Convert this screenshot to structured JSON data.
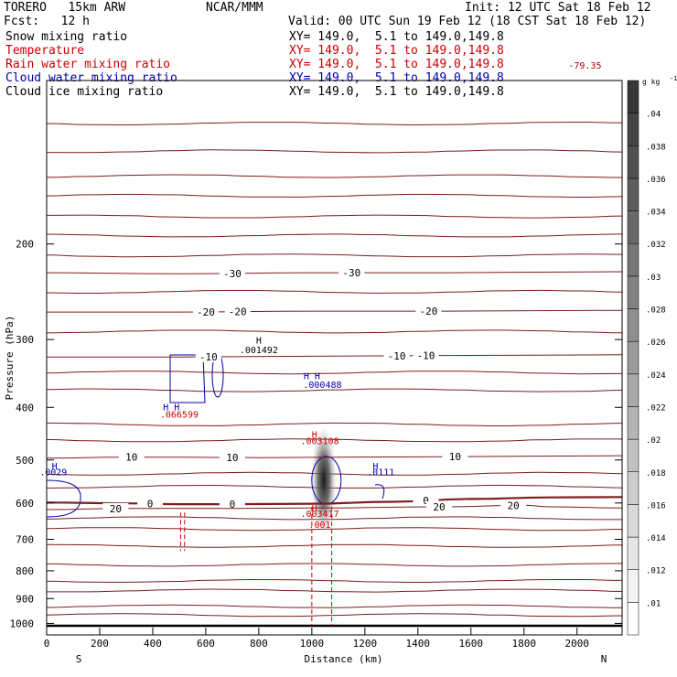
{
  "header": {
    "model": "TORERO   15km ARW",
    "org": "NCAR/MMM",
    "init": "Init: 12 UTC Sat 18 Feb 12",
    "fcst": "Fcst:   12 h",
    "valid": "Valid: 00 UTC Sun 19 Feb 12 (18 CST Sat 18 Feb 12)",
    "fields": [
      {
        "name": "Snow mixing ratio",
        "loc": "XY= 149.0,  5.1 to 149.0,149.8",
        "color": "#000000"
      },
      {
        "name": "Temperature",
        "loc": "XY= 149.0,  5.1 to 149.0,149.8",
        "color": "#cc0000"
      },
      {
        "name": "Rain water mixing ratio",
        "loc": "XY= 149.0,  5.1 to 149.0,149.8",
        "color": "#cc0000"
      },
      {
        "name": "Cloud water mixing ratio",
        "loc": "XY= 149.0,  5.1 to 149.0,149.8",
        "color": "#0000aa"
      },
      {
        "name": "Cloud ice mixing ratio",
        "loc": "XY= 149.0,  5.1 to 149.0,149.8",
        "color": "#000000"
      }
    ]
  },
  "chart_data": {
    "type": "contour",
    "xlabel": "Distance (km)",
    "ylabel": "Pressure (hPa)",
    "xlim": [
      0,
      2170
    ],
    "ylim": [
      1050,
      100
    ],
    "y_scale": "log-pressure",
    "xticks": [
      0,
      200,
      400,
      600,
      800,
      1000,
      1200,
      1400,
      1600,
      1800,
      2000
    ],
    "yticks": [
      200,
      300,
      400,
      500,
      600,
      700,
      800,
      900,
      1000
    ],
    "left_end_label": "S",
    "right_end_label": "N",
    "colorbar": {
      "unit": "g kg",
      "unit_exp": "-1",
      "ticks": [
        ".01",
        ".012",
        ".014",
        ".016",
        ".018",
        ".02",
        ".022",
        ".024",
        ".026",
        ".028",
        ".03",
        ".032",
        ".034",
        ".036",
        ".038",
        ".04"
      ]
    },
    "temperature_contours": [
      {
        "label": "-30",
        "points": [
          [
            0,
            226
          ],
          [
            500,
            227
          ],
          [
            1000,
            226
          ],
          [
            1500,
            226
          ],
          [
            2170,
            225
          ]
        ],
        "labels_at": [
          700,
          1150
        ]
      },
      {
        "label": "-20",
        "points": [
          [
            0,
            267
          ],
          [
            500,
            267
          ],
          [
            1000,
            266
          ],
          [
            1500,
            266
          ],
          [
            2170,
            265
          ]
        ],
        "labels_at": [
          600,
          720,
          1440
        ]
      },
      {
        "label": "-10",
        "points": [
          [
            0,
            323
          ],
          [
            500,
            323
          ],
          [
            1000,
            322
          ],
          [
            1500,
            321
          ],
          [
            2170,
            320
          ]
        ],
        "labels_at": [
          610,
          1320,
          1430
        ]
      },
      {
        "label": "0",
        "points": [
          [
            0,
            599
          ],
          [
            300,
            601
          ],
          [
            500,
            603
          ],
          [
            700,
            603
          ],
          [
            1000,
            602
          ],
          [
            1300,
            597
          ],
          [
            1600,
            590
          ],
          [
            1900,
            586
          ],
          [
            2170,
            585
          ]
        ],
        "labels_at": [
          390,
          700,
          1430
        ]
      },
      {
        "label": "10",
        "points": [
          [
            0,
            496
          ],
          [
            300,
            494
          ],
          [
            500,
            494
          ],
          [
            800,
            495
          ],
          [
            1100,
            494
          ],
          [
            1500,
            493
          ],
          [
            2170,
            491
          ]
        ],
        "labels_at": [
          320,
          700,
          1540
        ]
      },
      {
        "label": "20",
        "points": [
          [
            0,
            617
          ],
          [
            300,
            614
          ],
          [
            700,
            614
          ],
          [
            1000,
            613
          ],
          [
            1500,
            610
          ],
          [
            1800,
            606
          ],
          [
            1900,
            610
          ],
          [
            2170,
            613
          ]
        ],
        "labels_at": [
          260,
          1480,
          1760
        ]
      }
    ],
    "annotations": [
      {
        "text": "-79.35",
        "x": 2030,
        "y": 95,
        "color": "#b00000"
      },
      {
        "text": "H",
        "x": 800,
        "y": 305,
        "color": "#000000"
      },
      {
        "text": ".001492",
        "x": 800,
        "y": 318,
        "color": "#000000"
      },
      {
        "text": "H H",
        "x": 1000,
        "y": 355,
        "color": "#0000aa"
      },
      {
        "text": ".000488",
        "x": 1040,
        "y": 368,
        "color": "#0000aa"
      },
      {
        "text": "H H",
        "x": 470,
        "y": 405,
        "color": "#0000aa"
      },
      {
        "text": ".066599",
        "x": 500,
        "y": 418,
        "color": "#cc0000"
      },
      {
        "text": "H",
        "x": 1010,
        "y": 455,
        "color": "#cc0000"
      },
      {
        "text": ".003108",
        "x": 1030,
        "y": 468,
        "color": "#cc0000"
      },
      {
        "text": "H",
        "x": 30,
        "y": 520,
        "color": "#0000aa"
      },
      {
        "text": ".0029",
        "x": 25,
        "y": 534,
        "color": "#0000aa"
      },
      {
        "text": "H",
        "x": 1240,
        "y": 520,
        "color": "#0000aa"
      },
      {
        "text": ".0111",
        "x": 1260,
        "y": 534,
        "color": "#0000aa"
      },
      {
        "text": "H",
        "x": 1010,
        "y": 622,
        "color": "#cc0000"
      },
      {
        "text": ".003417",
        "x": 1030,
        "y": 636,
        "color": "#cc0000"
      },
      {
        "text": ".001",
        "x": 1030,
        "y": 667,
        "color": "#cc0000"
      }
    ]
  }
}
